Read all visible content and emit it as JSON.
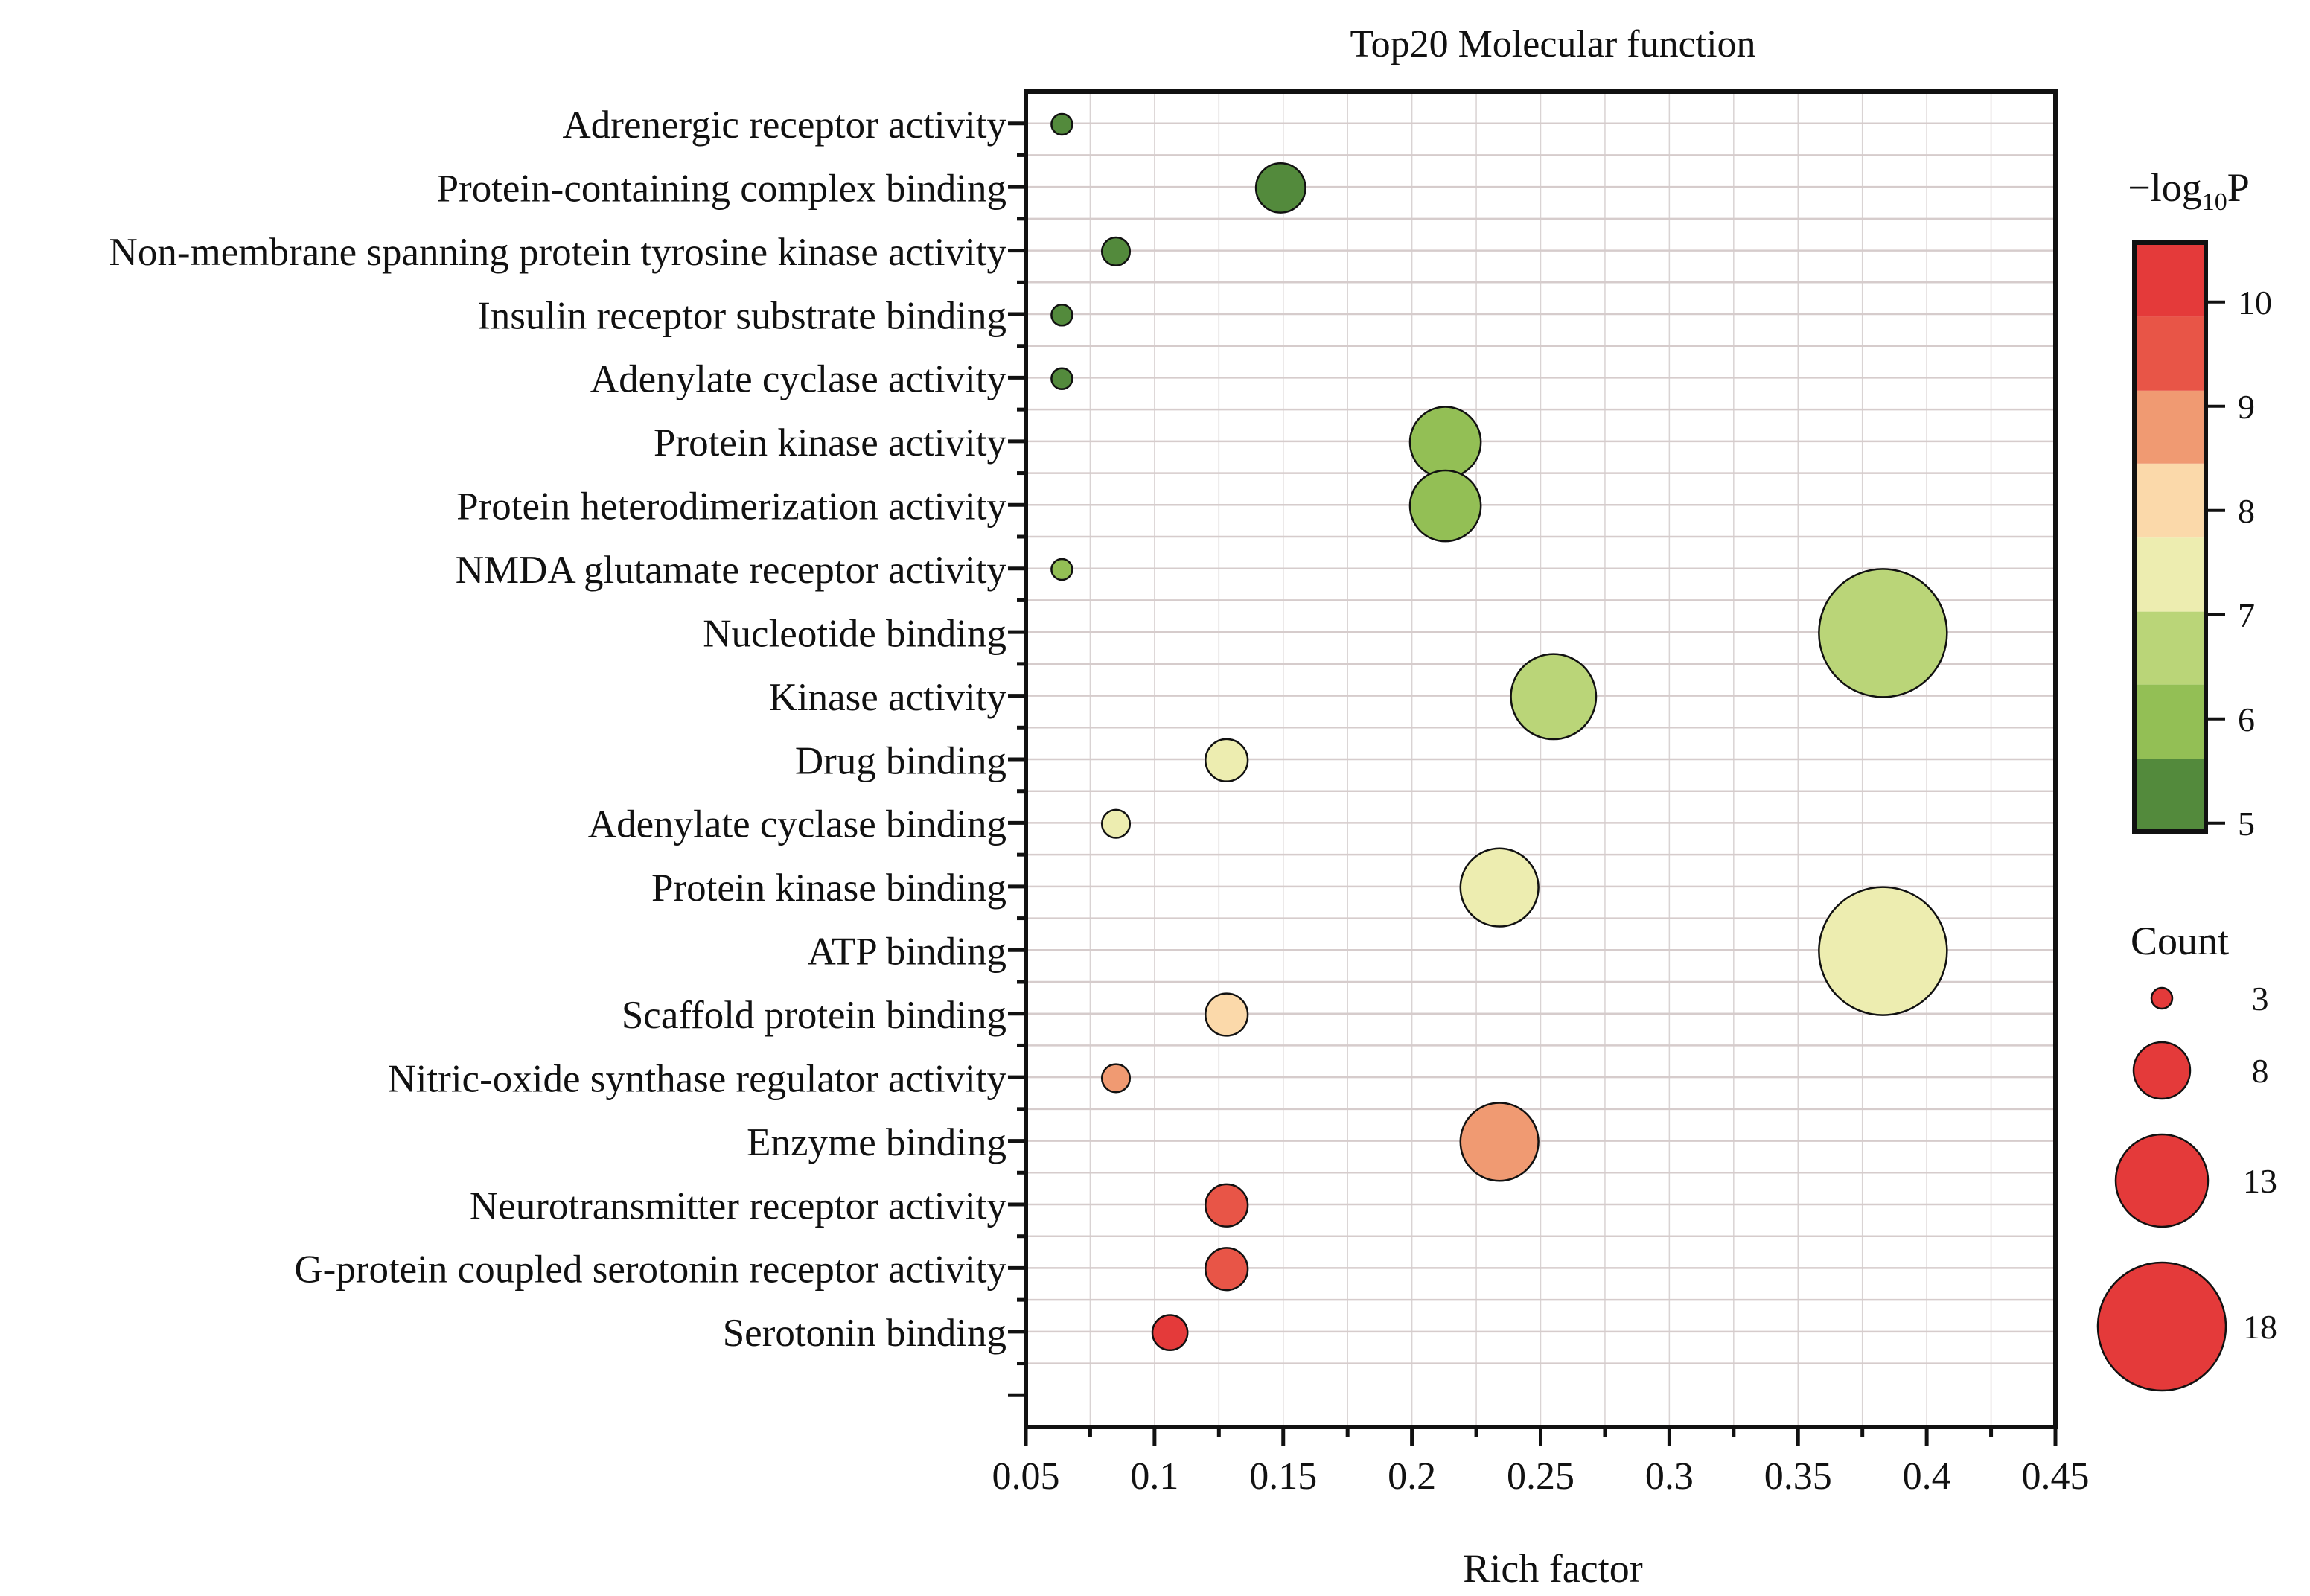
{
  "chart_data": {
    "type": "scatter",
    "subtype": "bubble",
    "title": "Top20 Molecular function",
    "xlabel": "Rich factor",
    "ylabel": "",
    "xlim": [
      0.05,
      0.45
    ],
    "xticks": [
      "0.05",
      "0.1",
      "0.15",
      "0.2",
      "0.25",
      "0.3",
      "0.35",
      "0.4",
      "0.45"
    ],
    "xtick_values": [
      0.05,
      0.1,
      0.15,
      0.2,
      0.25,
      0.3,
      0.35,
      0.4,
      0.45
    ],
    "grid": true,
    "categories": [
      "Adrenergic receptor activity",
      "Protein-containing complex binding",
      "Non-membrane spanning protein tyrosine kinase activity",
      "Insulin receptor substrate binding",
      "Adenylate cyclase activity",
      "Protein kinase activity",
      "Protein heterodimerization activity",
      "NMDA glutamate receptor activity",
      "Nucleotide binding",
      "Kinase activity",
      "Drug binding",
      "Adenylate cyclase binding",
      "Protein kinase binding",
      "ATP binding",
      "Scaffold protein binding",
      "Nitric-oxide synthase regulator activity",
      "Enzyme binding",
      "Neurotransmitter receptor activity",
      "G-protein coupled serotonin receptor activity",
      "Serotonin binding"
    ],
    "points": [
      {
        "term": "Adrenergic receptor activity",
        "rich_factor": 0.064,
        "count": 3,
        "neg_log10_p": 5.3
      },
      {
        "term": "Protein-containing complex binding",
        "rich_factor": 0.149,
        "count": 7,
        "neg_log10_p": 5.3
      },
      {
        "term": "Non-membrane spanning protein tyrosine kinase activity",
        "rich_factor": 0.085,
        "count": 4,
        "neg_log10_p": 5.3
      },
      {
        "term": "Insulin receptor substrate binding",
        "rich_factor": 0.064,
        "count": 3,
        "neg_log10_p": 5.3
      },
      {
        "term": "Adenylate cyclase activity",
        "rich_factor": 0.064,
        "count": 3,
        "neg_log10_p": 5.3
      },
      {
        "term": "Protein kinase activity",
        "rich_factor": 0.213,
        "count": 10,
        "neg_log10_p": 6.0
      },
      {
        "term": "Protein heterodimerization activity",
        "rich_factor": 0.213,
        "count": 10,
        "neg_log10_p": 6.0
      },
      {
        "term": "NMDA glutamate receptor activity",
        "rich_factor": 0.064,
        "count": 3,
        "neg_log10_p": 6.0
      },
      {
        "term": "Nucleotide binding",
        "rich_factor": 0.383,
        "count": 18,
        "neg_log10_p": 6.7
      },
      {
        "term": "Kinase activity",
        "rich_factor": 0.255,
        "count": 12,
        "neg_log10_p": 6.7
      },
      {
        "term": "Drug binding",
        "rich_factor": 0.128,
        "count": 6,
        "neg_log10_p": 7.4
      },
      {
        "term": "Adenylate cyclase binding",
        "rich_factor": 0.085,
        "count": 4,
        "neg_log10_p": 7.4
      },
      {
        "term": "Protein kinase binding",
        "rich_factor": 0.234,
        "count": 11,
        "neg_log10_p": 7.4
      },
      {
        "term": "ATP binding",
        "rich_factor": 0.383,
        "count": 18,
        "neg_log10_p": 7.4
      },
      {
        "term": "Scaffold protein binding",
        "rich_factor": 0.128,
        "count": 6,
        "neg_log10_p": 8.1
      },
      {
        "term": "Nitric-oxide synthase regulator activity",
        "rich_factor": 0.085,
        "count": 4,
        "neg_log10_p": 8.8
      },
      {
        "term": "Enzyme binding",
        "rich_factor": 0.234,
        "count": 11,
        "neg_log10_p": 8.8
      },
      {
        "term": "Neurotransmitter receptor activity",
        "rich_factor": 0.128,
        "count": 6,
        "neg_log10_p": 9.5
      },
      {
        "term": "G-protein coupled serotonin receptor activity",
        "rich_factor": 0.128,
        "count": 6,
        "neg_log10_p": 9.5
      },
      {
        "term": "Serotonin binding",
        "rich_factor": 0.106,
        "count": 5,
        "neg_log10_p": 10.2
      }
    ],
    "color_legend": {
      "title_prefix": "−log",
      "title_subscript": "10",
      "title_suffix": "P",
      "range": [
        4.92,
        10.57
      ],
      "ticks": [
        "5",
        "6",
        "7",
        "8",
        "9",
        "10"
      ],
      "tick_values": [
        5,
        6,
        7,
        8,
        9,
        10
      ],
      "bands": [
        {
          "from": 4.92,
          "to": 5.62,
          "color": "#538A3C"
        },
        {
          "from": 5.62,
          "to": 6.33,
          "color": "#93BF55"
        },
        {
          "from": 6.33,
          "to": 7.03,
          "color": "#BAD578"
        },
        {
          "from": 7.03,
          "to": 7.74,
          "color": "#EDEDB0"
        },
        {
          "from": 7.74,
          "to": 8.45,
          "color": "#FBD9AA"
        },
        {
          "from": 8.45,
          "to": 9.15,
          "color": "#F09A72"
        },
        {
          "from": 9.15,
          "to": 9.86,
          "color": "#E85547"
        },
        {
          "from": 9.86,
          "to": 10.57,
          "color": "#E43A3A"
        }
      ],
      "placement": "right-top"
    },
    "size_legend": {
      "title": "Count",
      "values": [
        3,
        8,
        13,
        18
      ],
      "labels": [
        "3",
        "8",
        "13",
        "18"
      ],
      "color": "#E43A3A",
      "placement": "right-bottom"
    }
  }
}
